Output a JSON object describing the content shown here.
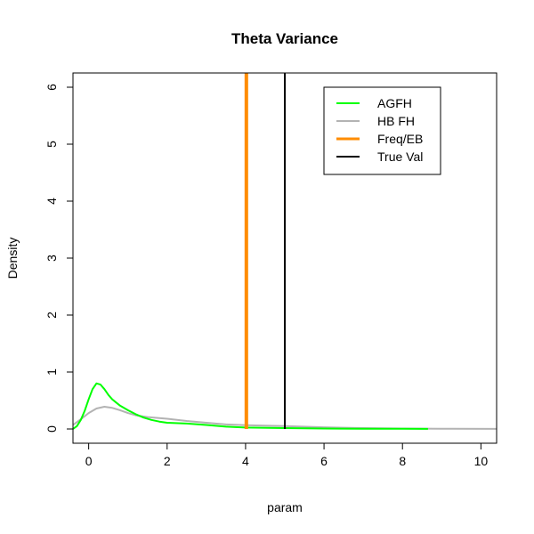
{
  "chart_data": {
    "type": "line",
    "title": "Theta Variance",
    "xlabel": "param",
    "ylabel": "Density",
    "xlim": [
      -0.4,
      10.4
    ],
    "ylim": [
      -0.25,
      6.25
    ],
    "x_ticks": [
      0,
      2,
      4,
      6,
      8,
      10
    ],
    "y_ticks": [
      0,
      1,
      2,
      3,
      4,
      5,
      6
    ],
    "legend_position": "top-right",
    "grid": false,
    "series": [
      {
        "name": "AGFH",
        "color": "#00ff00",
        "style": "density",
        "points": [
          [
            -0.4,
            0.0
          ],
          [
            -0.3,
            0.05
          ],
          [
            -0.2,
            0.16
          ],
          [
            -0.1,
            0.32
          ],
          [
            0.0,
            0.52
          ],
          [
            0.1,
            0.7
          ],
          [
            0.2,
            0.8
          ],
          [
            0.3,
            0.78
          ],
          [
            0.4,
            0.7
          ],
          [
            0.5,
            0.6
          ],
          [
            0.6,
            0.52
          ],
          [
            0.8,
            0.41
          ],
          [
            1.0,
            0.33
          ],
          [
            1.2,
            0.26
          ],
          [
            1.4,
            0.2
          ],
          [
            1.6,
            0.16
          ],
          [
            1.8,
            0.13
          ],
          [
            2.0,
            0.11
          ],
          [
            2.5,
            0.095
          ],
          [
            3.0,
            0.07
          ],
          [
            3.5,
            0.04
          ],
          [
            4.0,
            0.025
          ],
          [
            5.0,
            0.015
          ],
          [
            6.0,
            0.008
          ],
          [
            7.0,
            0.005
          ],
          [
            8.0,
            0.003
          ],
          [
            8.65,
            0.002
          ]
        ]
      },
      {
        "name": "HB FH",
        "color": "#b3b3b3",
        "style": "density",
        "points": [
          [
            -0.4,
            0.07
          ],
          [
            -0.2,
            0.17
          ],
          [
            0.0,
            0.28
          ],
          [
            0.2,
            0.36
          ],
          [
            0.4,
            0.39
          ],
          [
            0.6,
            0.37
          ],
          [
            0.8,
            0.33
          ],
          [
            1.0,
            0.28
          ],
          [
            1.2,
            0.24
          ],
          [
            1.5,
            0.21
          ],
          [
            2.0,
            0.18
          ],
          [
            2.5,
            0.14
          ],
          [
            3.0,
            0.11
          ],
          [
            3.5,
            0.08
          ],
          [
            4.0,
            0.065
          ],
          [
            5.0,
            0.05
          ],
          [
            6.0,
            0.03
          ],
          [
            7.0,
            0.015
          ],
          [
            8.0,
            0.008
          ],
          [
            9.0,
            0.004
          ],
          [
            10.4,
            0.002
          ]
        ]
      },
      {
        "name": "Freq/EB",
        "color": "#ff8c00",
        "style": "vline",
        "x": 4.02
      },
      {
        "name": "True Val",
        "color": "#000000",
        "style": "vline",
        "x": 5.0
      }
    ]
  }
}
